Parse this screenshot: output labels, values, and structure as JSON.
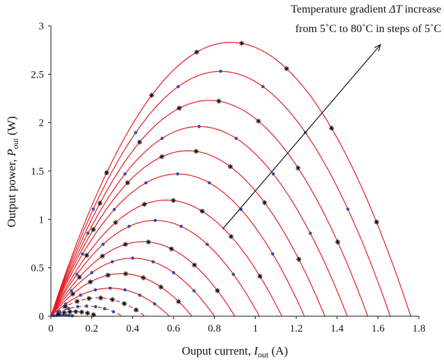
{
  "chart_data": {
    "type": "line",
    "title": "",
    "xlabel": {
      "main": "Ouput current, ",
      "symbol": "I",
      "sub": "out",
      "unit": " (A)"
    },
    "ylabel": {
      "main": "Output power, ",
      "symbol": "P",
      "sub": "out",
      "unit": " (W)"
    },
    "xlim": [
      0,
      1.8
    ],
    "ylim": [
      0,
      3
    ],
    "xticks": [
      "0",
      "0.2",
      "0.4",
      "0.6",
      "0.8",
      "1",
      "1.2",
      "1.4",
      "1.6",
      "1.8"
    ],
    "yticks": [
      "0",
      "0.5",
      "1",
      "1.5",
      "2",
      "2.5",
      "3"
    ],
    "grid": false,
    "annotation": {
      "line1": {
        "text": "Temperature gradient ",
        "math": "ΔT",
        "after": " increase"
      },
      "line2": "from 5˚C to 80˚C in steps of 5˚C",
      "arrow_from": [
        0.84,
        0.9
      ],
      "arrow_to": [
        1.61,
        2.8
      ]
    },
    "curve_style": {
      "color": "#e31b23",
      "dashed_curves": 4
    },
    "marker_style": {
      "dot_color": "#3a4ca8",
      "star_color": "#111111"
    },
    "series": [
      {
        "isc": 0.12,
        "pmax": 0.012
      },
      {
        "isc": 0.23,
        "pmax": 0.047
      },
      {
        "isc": 0.35,
        "pmax": 0.105
      },
      {
        "isc": 0.46,
        "pmax": 0.19
      },
      {
        "isc": 0.58,
        "pmax": 0.29
      },
      {
        "isc": 0.69,
        "pmax": 0.44
      },
      {
        "isc": 0.8,
        "pmax": 0.6
      },
      {
        "isc": 0.9,
        "pmax": 0.77
      },
      {
        "isc": 1.02,
        "pmax": 0.99
      },
      {
        "isc": 1.13,
        "pmax": 1.2
      },
      {
        "isc": 1.24,
        "pmax": 1.47
      },
      {
        "isc": 1.34,
        "pmax": 1.71
      },
      {
        "isc": 1.45,
        "pmax": 1.96
      },
      {
        "isc": 1.55,
        "pmax": 2.23
      },
      {
        "isc": 1.66,
        "pmax": 2.53
      },
      {
        "isc": 1.76,
        "pmax": 2.83
      }
    ]
  }
}
